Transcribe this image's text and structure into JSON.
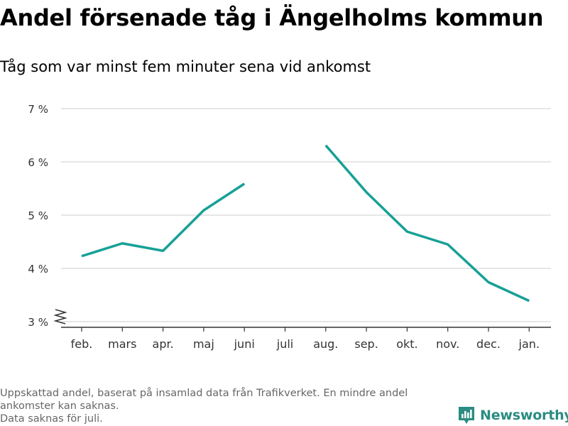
{
  "title": "Andel försenade tåg i Ängelholms kommun",
  "subtitle": "Tåg som var minst fem minuter sena vid ankomst",
  "footnote": {
    "lines": [
      "Uppskattad andel, baserat på insamlad data från Trafikverket. En mindre andel ankomster kan saknas.",
      "Data saknas för juli."
    ]
  },
  "brand": {
    "name": "Newsworthy",
    "icon": "bar-chart-flag-icon",
    "color": "#2a8c82"
  },
  "colors": {
    "line": "#17a097",
    "grid": "#dddddd",
    "axis": "#333333",
    "text": "#333333",
    "footnote": "#666666"
  },
  "chart_data": {
    "type": "line",
    "title": "Andel försenade tåg i Ängelholms kommun",
    "subtitle": "Tåg som var minst fem minuter sena vid ankomst",
    "categories": [
      "feb.",
      "mars",
      "apr.",
      "maj",
      "juni",
      "juli",
      "aug.",
      "sep.",
      "okt.",
      "nov.",
      "dec.",
      "jan."
    ],
    "series": [
      {
        "values": [
          4.23,
          4.47,
          4.33,
          5.09,
          5.59,
          null,
          6.31,
          5.43,
          4.69,
          4.45,
          3.74,
          3.39
        ]
      }
    ],
    "ylim": [
      3,
      7
    ],
    "yticks": [
      3,
      4,
      5,
      6,
      7
    ],
    "ytick_labels": [
      "3 %",
      "4 %",
      "5 %",
      "6 %",
      "7 %"
    ],
    "ylabel": "",
    "xlabel": "",
    "grid": true,
    "axis_break": true
  }
}
